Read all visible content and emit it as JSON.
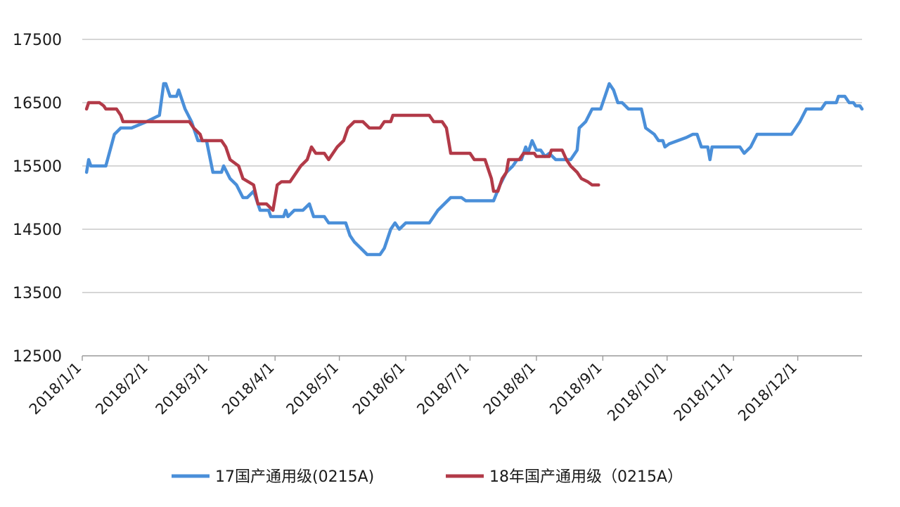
{
  "chart_data": {
    "type": "line",
    "title": "",
    "xlabel": "",
    "ylabel": "",
    "ylim": [
      12500,
      17500
    ],
    "yticks": [
      12500,
      13500,
      14500,
      15500,
      16500,
      17500
    ],
    "xlim": [
      "2018-01-01",
      "2018-12-31"
    ],
    "xticks": [
      "2018/1/1",
      "2018/2/1",
      "2018/3/1",
      "2018/4/1",
      "2018/5/1",
      "2018/6/1",
      "2018/7/1",
      "2018/8/1",
      "2018/9/1",
      "2018/10/1",
      "2018/11/1",
      "2018/12/1"
    ],
    "xtick_dates": [
      "2018-01-01",
      "2018-02-01",
      "2018-03-01",
      "2018-04-01",
      "2018-05-01",
      "2018-06-01",
      "2018-07-01",
      "2018-08-01",
      "2018-09-01",
      "2018-10-01",
      "2018-11-01",
      "2018-12-01"
    ],
    "grid": true,
    "legend_position": "bottom",
    "series": [
      {
        "name": "17国产通用级(0215A)",
        "color": "#4a8fd9",
        "points": [
          [
            "2018-01-03",
            15400
          ],
          [
            "2018-01-04",
            15600
          ],
          [
            "2018-01-05",
            15500
          ],
          [
            "2018-01-12",
            15500
          ],
          [
            "2018-01-16",
            16000
          ],
          [
            "2018-01-19",
            16100
          ],
          [
            "2018-01-24",
            16100
          ],
          [
            "2018-01-31",
            16200
          ],
          [
            "2018-02-06",
            16300
          ],
          [
            "2018-02-08",
            16800
          ],
          [
            "2018-02-09",
            16800
          ],
          [
            "2018-02-11",
            16600
          ],
          [
            "2018-02-14",
            16600
          ],
          [
            "2018-02-15",
            16700
          ],
          [
            "2018-02-18",
            16400
          ],
          [
            "2018-02-21",
            16200
          ],
          [
            "2018-02-24",
            15900
          ],
          [
            "2018-02-28",
            15900
          ],
          [
            "2018-03-03",
            15400
          ],
          [
            "2018-03-07",
            15400
          ],
          [
            "2018-03-08",
            15500
          ],
          [
            "2018-03-11",
            15300
          ],
          [
            "2018-03-14",
            15200
          ],
          [
            "2018-03-17",
            15000
          ],
          [
            "2018-03-19",
            15000
          ],
          [
            "2018-03-22",
            15100
          ],
          [
            "2018-03-25",
            14800
          ],
          [
            "2018-03-29",
            14800
          ],
          [
            "2018-03-30",
            14700
          ],
          [
            "2018-04-05",
            14700
          ],
          [
            "2018-04-06",
            14800
          ],
          [
            "2018-04-07",
            14700
          ],
          [
            "2018-04-10",
            14800
          ],
          [
            "2018-04-14",
            14800
          ],
          [
            "2018-04-17",
            14900
          ],
          [
            "2018-04-19",
            14700
          ],
          [
            "2018-04-24",
            14700
          ],
          [
            "2018-04-26",
            14600
          ],
          [
            "2018-05-04",
            14600
          ],
          [
            "2018-05-06",
            14400
          ],
          [
            "2018-05-08",
            14300
          ],
          [
            "2018-05-11",
            14200
          ],
          [
            "2018-05-14",
            14100
          ],
          [
            "2018-05-20",
            14100
          ],
          [
            "2018-05-22",
            14200
          ],
          [
            "2018-05-25",
            14500
          ],
          [
            "2018-05-27",
            14600
          ],
          [
            "2018-05-29",
            14500
          ],
          [
            "2018-06-01",
            14600
          ],
          [
            "2018-06-04",
            14600
          ],
          [
            "2018-06-12",
            14600
          ],
          [
            "2018-06-16",
            14800
          ],
          [
            "2018-06-19",
            14900
          ],
          [
            "2018-06-22",
            15000
          ],
          [
            "2018-06-24",
            15000
          ],
          [
            "2018-06-27",
            15000
          ],
          [
            "2018-06-29",
            14950
          ],
          [
            "2018-07-08",
            14950
          ],
          [
            "2018-07-12",
            14950
          ],
          [
            "2018-07-15",
            15200
          ],
          [
            "2018-07-18",
            15400
          ],
          [
            "2018-07-21",
            15500
          ],
          [
            "2018-07-23",
            15600
          ],
          [
            "2018-07-25",
            15600
          ],
          [
            "2018-07-27",
            15800
          ],
          [
            "2018-07-28",
            15700
          ],
          [
            "2018-07-30",
            15900
          ],
          [
            "2018-08-01",
            15750
          ],
          [
            "2018-08-03",
            15750
          ],
          [
            "2018-08-05",
            15650
          ],
          [
            "2018-08-07",
            15700
          ],
          [
            "2018-08-10",
            15600
          ],
          [
            "2018-08-14",
            15600
          ],
          [
            "2018-08-17",
            15600
          ],
          [
            "2018-08-20",
            15750
          ],
          [
            "2018-08-21",
            16100
          ],
          [
            "2018-08-24",
            16200
          ],
          [
            "2018-08-27",
            16400
          ],
          [
            "2018-08-31",
            16400
          ],
          [
            "2018-09-04",
            16800
          ],
          [
            "2018-09-06",
            16700
          ],
          [
            "2018-09-08",
            16500
          ],
          [
            "2018-09-10",
            16500
          ],
          [
            "2018-09-13",
            16400
          ],
          [
            "2018-09-15",
            16400
          ],
          [
            "2018-09-19",
            16400
          ],
          [
            "2018-09-21",
            16100
          ],
          [
            "2018-09-25",
            16000
          ],
          [
            "2018-09-27",
            15900
          ],
          [
            "2018-09-29",
            15900
          ],
          [
            "2018-09-30",
            15800
          ],
          [
            "2018-10-02",
            15850
          ],
          [
            "2018-10-10",
            15950
          ],
          [
            "2018-10-13",
            16000
          ],
          [
            "2018-10-15",
            16000
          ],
          [
            "2018-10-17",
            15800
          ],
          [
            "2018-10-20",
            15800
          ],
          [
            "2018-10-21",
            15600
          ],
          [
            "2018-10-22",
            15800
          ],
          [
            "2018-10-28",
            15800
          ],
          [
            "2018-11-01",
            15800
          ],
          [
            "2018-11-04",
            15800
          ],
          [
            "2018-11-06",
            15700
          ],
          [
            "2018-11-09",
            15800
          ],
          [
            "2018-11-12",
            16000
          ],
          [
            "2018-11-18",
            16000
          ],
          [
            "2018-11-25",
            16000
          ],
          [
            "2018-11-28",
            16000
          ],
          [
            "2018-11-30",
            16100
          ],
          [
            "2018-12-02",
            16200
          ],
          [
            "2018-12-05",
            16400
          ],
          [
            "2018-12-12",
            16400
          ],
          [
            "2018-12-14",
            16500
          ],
          [
            "2018-12-19",
            16500
          ],
          [
            "2018-12-20",
            16600
          ],
          [
            "2018-12-23",
            16600
          ],
          [
            "2018-12-25",
            16500
          ],
          [
            "2018-12-27",
            16500
          ],
          [
            "2018-12-28",
            16450
          ],
          [
            "2018-12-30",
            16450
          ],
          [
            "2018-12-31",
            16400
          ]
        ]
      },
      {
        "name": "18年国产通用级（0215A）",
        "color": "#b23a48",
        "points": [
          [
            "2018-01-03",
            16400
          ],
          [
            "2018-01-04",
            16500
          ],
          [
            "2018-01-09",
            16500
          ],
          [
            "2018-01-11",
            16450
          ],
          [
            "2018-01-12",
            16400
          ],
          [
            "2018-01-17",
            16400
          ],
          [
            "2018-01-19",
            16300
          ],
          [
            "2018-01-20",
            16200
          ],
          [
            "2018-01-25",
            16200
          ],
          [
            "2018-02-10",
            16200
          ],
          [
            "2018-02-18",
            16200
          ],
          [
            "2018-02-20",
            16200
          ],
          [
            "2018-02-22",
            16100
          ],
          [
            "2018-02-25",
            16000
          ],
          [
            "2018-02-26",
            15900
          ],
          [
            "2018-03-01",
            15900
          ],
          [
            "2018-03-07",
            15900
          ],
          [
            "2018-03-09",
            15800
          ],
          [
            "2018-03-11",
            15600
          ],
          [
            "2018-03-15",
            15500
          ],
          [
            "2018-03-17",
            15300
          ],
          [
            "2018-03-22",
            15200
          ],
          [
            "2018-03-24",
            14900
          ],
          [
            "2018-03-28",
            14900
          ],
          [
            "2018-03-31",
            14800
          ],
          [
            "2018-04-02",
            15200
          ],
          [
            "2018-04-04",
            15250
          ],
          [
            "2018-04-08",
            15250
          ],
          [
            "2018-04-11",
            15400
          ],
          [
            "2018-04-13",
            15500
          ],
          [
            "2018-04-16",
            15600
          ],
          [
            "2018-04-18",
            15800
          ],
          [
            "2018-04-20",
            15700
          ],
          [
            "2018-04-24",
            15700
          ],
          [
            "2018-04-26",
            15600
          ],
          [
            "2018-04-28",
            15700
          ],
          [
            "2018-04-30",
            15800
          ],
          [
            "2018-05-03",
            15900
          ],
          [
            "2018-05-05",
            16100
          ],
          [
            "2018-05-08",
            16200
          ],
          [
            "2018-05-12",
            16200
          ],
          [
            "2018-05-15",
            16100
          ],
          [
            "2018-05-20",
            16100
          ],
          [
            "2018-05-22",
            16200
          ],
          [
            "2018-05-25",
            16200
          ],
          [
            "2018-05-26",
            16300
          ],
          [
            "2018-06-03",
            16300
          ],
          [
            "2018-06-12",
            16300
          ],
          [
            "2018-06-14",
            16200
          ],
          [
            "2018-06-18",
            16200
          ],
          [
            "2018-06-20",
            16100
          ],
          [
            "2018-06-22",
            15700
          ],
          [
            "2018-06-26",
            15700
          ],
          [
            "2018-07-01",
            15700
          ],
          [
            "2018-07-03",
            15600
          ],
          [
            "2018-07-08",
            15600
          ],
          [
            "2018-07-11",
            15300
          ],
          [
            "2018-07-12",
            15100
          ],
          [
            "2018-07-14",
            15100
          ],
          [
            "2018-07-16",
            15300
          ],
          [
            "2018-07-18",
            15400
          ],
          [
            "2018-07-19",
            15600
          ],
          [
            "2018-07-24",
            15600
          ],
          [
            "2018-07-26",
            15700
          ],
          [
            "2018-07-31",
            15700
          ],
          [
            "2018-08-01",
            15650
          ],
          [
            "2018-08-07",
            15650
          ],
          [
            "2018-08-08",
            15750
          ],
          [
            "2018-08-13",
            15750
          ],
          [
            "2018-08-15",
            15600
          ],
          [
            "2018-08-17",
            15500
          ],
          [
            "2018-08-20",
            15400
          ],
          [
            "2018-08-22",
            15300
          ],
          [
            "2018-08-25",
            15250
          ],
          [
            "2018-08-27",
            15200
          ],
          [
            "2018-08-30",
            15200
          ]
        ]
      }
    ]
  }
}
